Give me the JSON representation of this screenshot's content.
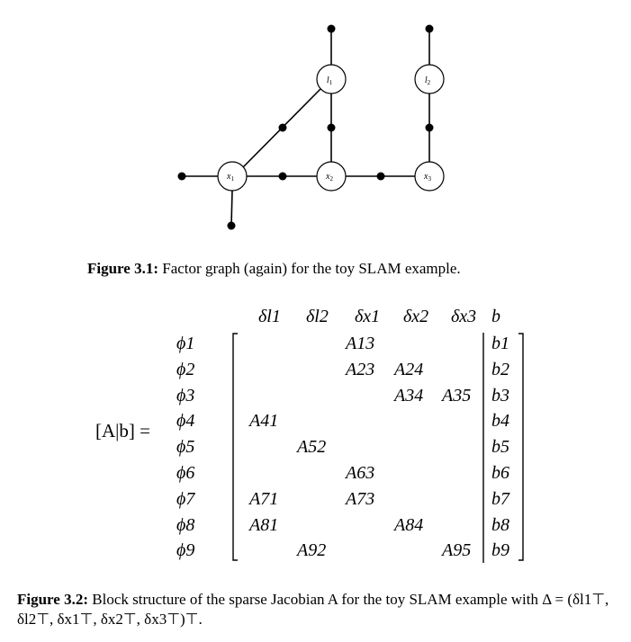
{
  "figure1": {
    "nodes": [
      {
        "id": "l1",
        "label": "l",
        "sub": "1"
      },
      {
        "id": "l2",
        "label": "l",
        "sub": "2"
      },
      {
        "id": "x1",
        "label": "x",
        "sub": "1"
      },
      {
        "id": "x2",
        "label": "x",
        "sub": "2"
      },
      {
        "id": "x3",
        "label": "x",
        "sub": "3"
      }
    ],
    "caption_label": "Figure 3.1:",
    "caption_text": " Factor graph (again) for the toy SLAM example."
  },
  "figure2": {
    "lhs": "[A|b] =",
    "columns": [
      "δl1",
      "δl2",
      "δx1",
      "δx2",
      "δx3",
      "b"
    ],
    "rows": [
      "ϕ1",
      "ϕ2",
      "ϕ3",
      "ϕ4",
      "ϕ5",
      "ϕ6",
      "ϕ7",
      "ϕ8",
      "ϕ9"
    ],
    "entries": [
      [
        "",
        "",
        "A13",
        "",
        "",
        "b1"
      ],
      [
        "",
        "",
        "A23",
        "A24",
        "",
        "b2"
      ],
      [
        "",
        "",
        "",
        "A34",
        "A35",
        "b3"
      ],
      [
        "A41",
        "",
        "",
        "",
        "",
        "b4"
      ],
      [
        "",
        "A52",
        "",
        "",
        "",
        "b5"
      ],
      [
        "",
        "",
        "A63",
        "",
        "",
        "b6"
      ],
      [
        "A71",
        "",
        "A73",
        "",
        "",
        "b7"
      ],
      [
        "A81",
        "",
        "",
        "A84",
        "",
        "b8"
      ],
      [
        "",
        "A92",
        "",
        "",
        "A95",
        "b9"
      ]
    ],
    "caption_label": "Figure 3.2:",
    "caption_text": " Block structure of the sparse Jacobian A for the toy SLAM example with Δ = (δl1⊤, δl2⊤, δx1⊤, δx2⊤, δx3⊤)⊤."
  }
}
